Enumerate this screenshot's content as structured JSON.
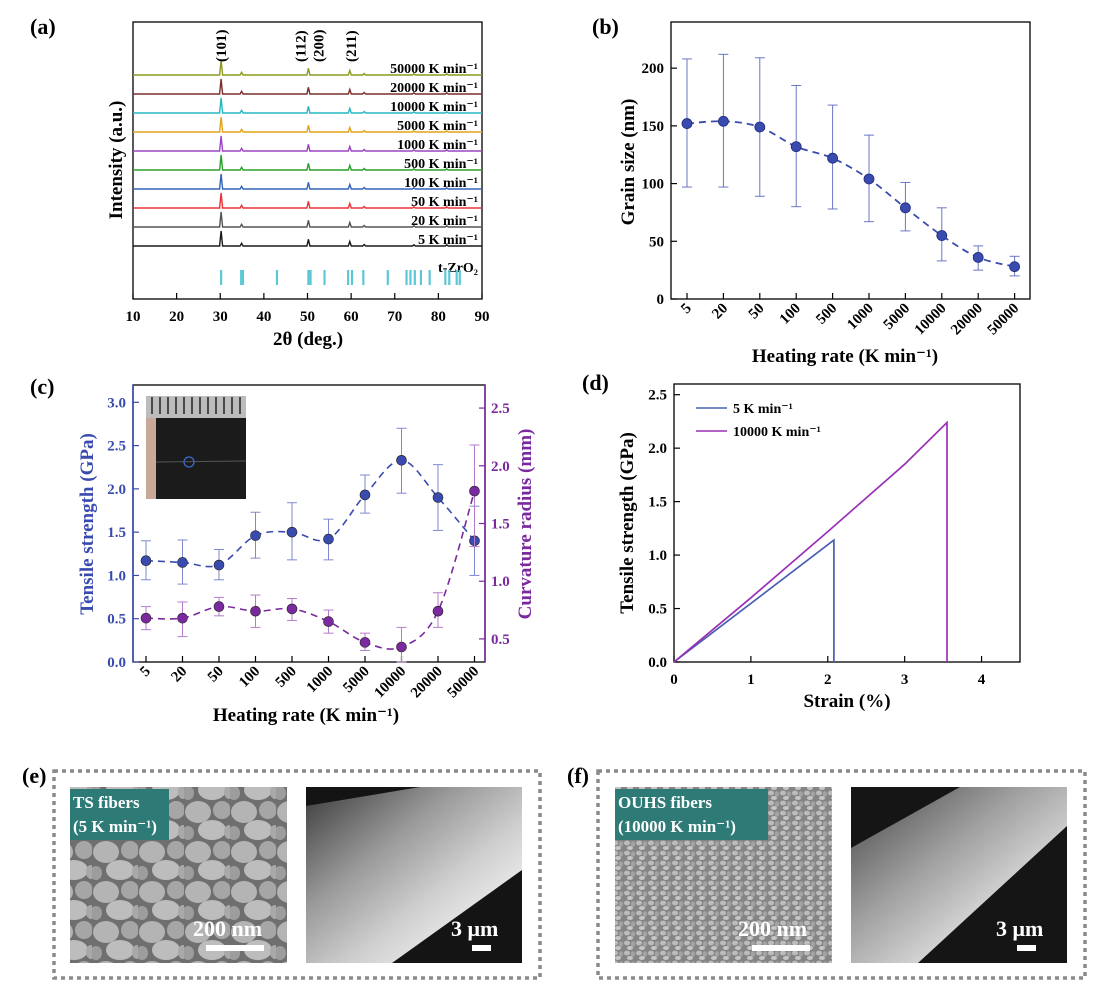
{
  "figure": {
    "panel_labels": [
      "(a)",
      "(b)",
      "(c)",
      "(d)",
      "(e)",
      "(f)"
    ]
  },
  "chart_data": [
    {
      "id": "a",
      "type": "line",
      "title": "",
      "xlabel": "2θ (deg.)",
      "ylabel": "Intensity (a.u.)",
      "xlim": [
        10,
        90
      ],
      "xticks": [
        "10",
        "20",
        "30",
        "40",
        "50",
        "60",
        "70",
        "80",
        "90"
      ],
      "peak_labels": [
        {
          "text": "(101)",
          "x": 30.2
        },
        {
          "text": "(112)",
          "x": 50.2
        },
        {
          "text": "(200)",
          "x": 50.7
        },
        {
          "text": "(211)",
          "x": 60.0
        }
      ],
      "peaks": [
        {
          "x": 30.2,
          "h": 1.0
        },
        {
          "x": 34.9,
          "h": 0.18
        },
        {
          "x": 50.2,
          "h": 0.45
        },
        {
          "x": 59.7,
          "h": 0.3
        },
        {
          "x": 63.0,
          "h": 0.1
        },
        {
          "x": 74.4,
          "h": 0.08
        },
        {
          "x": 81.9,
          "h": 0.08
        }
      ],
      "series": [
        {
          "name": "5 K min⁻¹",
          "color": "#1a1a1a"
        },
        {
          "name": "20 K min⁻¹",
          "color": "#555555"
        },
        {
          "name": "50 K min⁻¹",
          "color": "#e8333a"
        },
        {
          "name": "100 K min⁻¹",
          "color": "#3563b8"
        },
        {
          "name": "500 K min⁻¹",
          "color": "#2aa02a"
        },
        {
          "name": "1000 K min⁻¹",
          "color": "#9b45c4"
        },
        {
          "name": "5000 K min⁻¹",
          "color": "#e3a317"
        },
        {
          "name": "10000 K min⁻¹",
          "color": "#27b7c4"
        },
        {
          "name": "20000 K min⁻¹",
          "color": "#7a2e2e"
        },
        {
          "name": "50000 K min⁻¹",
          "color": "#8c9a1e"
        }
      ],
      "reference": {
        "name": "t-ZrO₂",
        "color": "#5cc8d6",
        "positions": [
          30.2,
          34.8,
          35.2,
          43.0,
          50.2,
          50.7,
          53.9,
          59.3,
          60.2,
          62.8,
          68.4,
          72.7,
          73.6,
          74.6,
          76.0,
          78.0,
          81.6,
          82.5,
          84.2,
          84.9
        ]
      }
    },
    {
      "id": "b",
      "type": "scatter",
      "xlabel": "Heating rate (K min⁻¹)",
      "ylabel": "Grain size  (nm)",
      "categories": [
        "5",
        "20",
        "50",
        "100",
        "500",
        "1000",
        "5000",
        "10000",
        "20000",
        "50000"
      ],
      "values": [
        152,
        154,
        149,
        132,
        122,
        104,
        79,
        55,
        36,
        28
      ],
      "error_lo": [
        97,
        97,
        89,
        80,
        78,
        67,
        59,
        33,
        25,
        20
      ],
      "error_hi": [
        208,
        212,
        209,
        185,
        168,
        142,
        101,
        79,
        46,
        37
      ],
      "ylim": [
        0,
        240
      ],
      "yticks": [
        "0",
        "50",
        "100",
        "150",
        "200"
      ],
      "color": "#3a4bb0",
      "fit": "dashed"
    },
    {
      "id": "c",
      "type": "scatter",
      "xlabel": "Heating rate (K min⁻¹)",
      "ylabel": "Tensile strength (GPa)",
      "ylabel_right": "Curvature radius (mm)",
      "categories": [
        "5",
        "20",
        "50",
        "100",
        "500",
        "1000",
        "5000",
        "10000",
        "20000",
        "50000"
      ],
      "series": [
        {
          "name": "Tensile strength",
          "axis": "left",
          "color": "#3a4bb0",
          "values": [
            1.17,
            1.15,
            1.12,
            1.46,
            1.5,
            1.42,
            1.93,
            2.33,
            1.9,
            1.4
          ],
          "error_lo": [
            0.95,
            0.9,
            0.95,
            1.2,
            1.18,
            1.18,
            1.72,
            1.95,
            1.52,
            1.0
          ],
          "error_hi": [
            1.4,
            1.41,
            1.3,
            1.73,
            1.84,
            1.65,
            2.16,
            2.7,
            2.28,
            1.8
          ]
        },
        {
          "name": "Curvature radius",
          "axis": "right",
          "color": "#7a2a9e",
          "values": [
            0.68,
            0.68,
            0.78,
            0.74,
            0.76,
            0.65,
            0.47,
            0.43,
            0.74,
            1.78
          ],
          "error_lo": [
            0.58,
            0.52,
            0.7,
            0.6,
            0.66,
            0.55,
            0.4,
            0.3,
            0.6,
            1.3
          ],
          "error_hi": [
            0.78,
            0.82,
            0.86,
            0.88,
            0.85,
            0.75,
            0.55,
            0.6,
            0.9,
            2.18
          ]
        }
      ],
      "ylim": [
        0,
        3.2
      ],
      "ylim_right": [
        0.3,
        2.7
      ],
      "yticks": [
        "0.0",
        "0.5",
        "1.0",
        "1.5",
        "2.0",
        "2.5",
        "3.0"
      ],
      "yticks_right": [
        "0.5",
        "1.0",
        "1.5",
        "2.0",
        "2.5"
      ]
    },
    {
      "id": "d",
      "type": "line",
      "xlabel": "Strain (%)",
      "ylabel": "Tensile strength (GPa)",
      "xlim": [
        0,
        4.5
      ],
      "ylim": [
        0,
        2.6
      ],
      "xticks": [
        "0",
        "1",
        "2",
        "3",
        "4"
      ],
      "yticks": [
        "0.0",
        "0.5",
        "1.0",
        "1.5",
        "2.0",
        "2.5"
      ],
      "series": [
        {
          "name": "5 K min⁻¹",
          "color": "#4a5fb0",
          "x": [
            0,
            2.08,
            2.08
          ],
          "y": [
            0,
            1.14,
            0
          ]
        },
        {
          "name": "10000 K min⁻¹",
          "color": "#9b2fb5",
          "x": [
            0,
            1.0,
            2.0,
            3.0,
            3.55,
            3.55
          ],
          "y": [
            0,
            0.6,
            1.22,
            1.85,
            2.24,
            0
          ]
        }
      ],
      "legend": "top-left"
    }
  ],
  "micrographs": {
    "e": {
      "badge_line1": "TS fibers",
      "badge_line2": "(5 K min⁻¹)",
      "scale_left": "200 nm",
      "scale_right": "3 μm"
    },
    "f": {
      "badge_line1": "OUHS fibers",
      "badge_line2": "(10000 K min⁻¹)",
      "scale_left": "200 nm",
      "scale_right": "3 μm"
    },
    "badge_color": "#2d7a76"
  }
}
